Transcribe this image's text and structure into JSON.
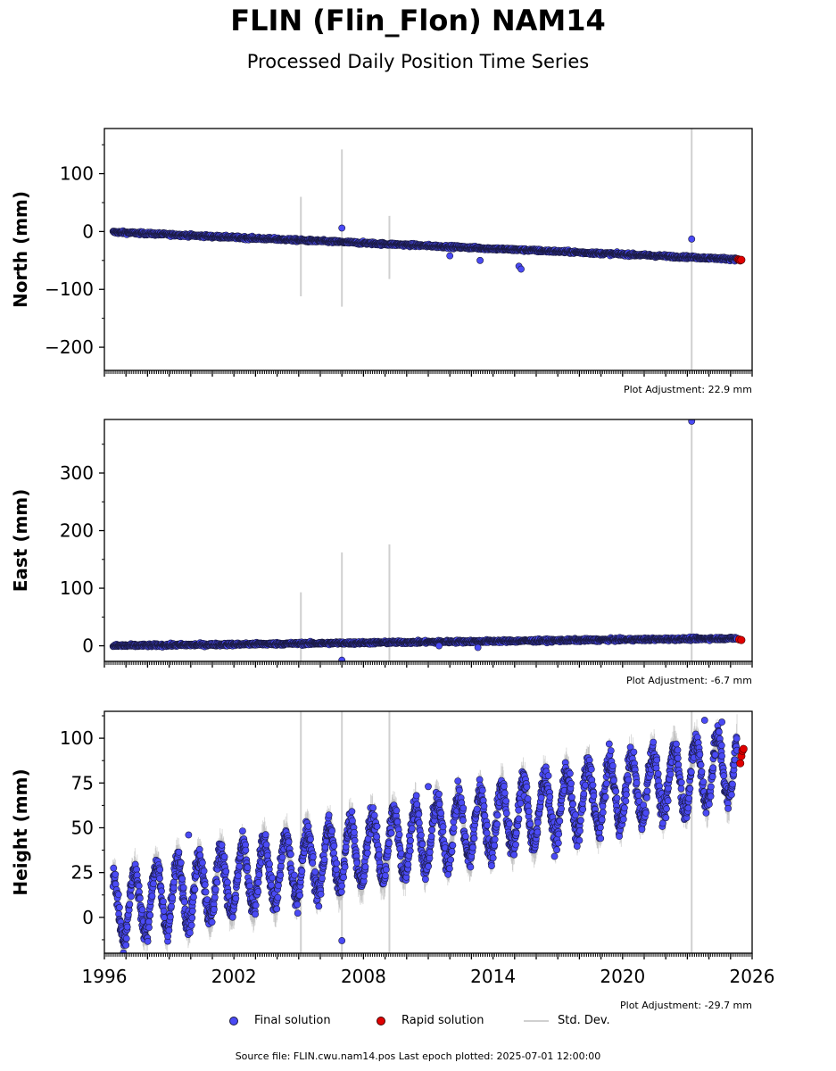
{
  "title": "FLIN (Flin_Flon) NAM14",
  "subtitle": "Processed Daily Position Time Series",
  "legend": {
    "final": "Final solution",
    "rapid": "Rapid solution",
    "std": "Std. Dev."
  },
  "footer": "Source file: FLIN.cwu.nam14.pos  Last epoch plotted: 2025-07-01 12:00:00",
  "colors": {
    "final": "#4a4af5",
    "rapid": "#e00000",
    "std": "#d0d0d0",
    "edge": "#1a1a40"
  },
  "chart_data": [
    {
      "type": "scatter",
      "ylabel": "North (mm)",
      "adjustment": "Plot Adjustment: 22.9 mm",
      "xlim": [
        1996,
        2026
      ],
      "ylim": [
        -240,
        178
      ],
      "yticks": [
        -200,
        -100,
        0,
        100
      ],
      "ytick_labels": [
        "−200",
        "−100",
        "0",
        "100"
      ],
      "final_trend": {
        "x": [
          1996.4,
          2025.3
        ],
        "y": [
          -1,
          -48
        ]
      },
      "rapid_points": [
        [
          2025.35,
          -48
        ],
        [
          2025.4,
          -49
        ],
        [
          2025.45,
          -50
        ],
        [
          2025.5,
          -49
        ]
      ],
      "outliers": [
        [
          2007.0,
          6
        ],
        [
          2023.2,
          -13
        ],
        [
          2015.2,
          -60
        ],
        [
          2015.3,
          -65
        ],
        [
          2012.0,
          -42
        ],
        [
          2013.4,
          -50
        ]
      ],
      "std_spikes": [
        [
          2005.1,
          -112,
          60
        ],
        [
          2007.0,
          -130,
          142
        ],
        [
          2009.2,
          -82,
          27
        ],
        [
          2023.2,
          -240,
          178
        ]
      ]
    },
    {
      "type": "scatter",
      "ylabel": "East (mm)",
      "adjustment": "Plot Adjustment: -6.7 mm",
      "xlim": [
        1996,
        2026
      ],
      "ylim": [
        -27,
        393
      ],
      "yticks": [
        0,
        100,
        200,
        300
      ],
      "ytick_labels": [
        "0",
        "100",
        "200",
        "300"
      ],
      "final_trend": {
        "x": [
          1996.4,
          2025.3
        ],
        "y": [
          0,
          13
        ]
      },
      "rapid_points": [
        [
          2025.4,
          11
        ],
        [
          2025.5,
          10
        ]
      ],
      "outliers": [
        [
          2023.2,
          390
        ],
        [
          2007.0,
          -25
        ],
        [
          2013.3,
          -3
        ],
        [
          2011.5,
          0
        ]
      ],
      "std_spikes": [
        [
          2005.1,
          -27,
          93
        ],
        [
          2007.0,
          -27,
          162
        ],
        [
          2009.2,
          -27,
          176
        ],
        [
          2023.2,
          -27,
          393
        ]
      ]
    },
    {
      "type": "scatter",
      "ylabel": "Height (mm)",
      "adjustment": "Plot Adjustment: -29.7 mm",
      "xlim": [
        1996,
        2026
      ],
      "ylim": [
        -20,
        115
      ],
      "yticks": [
        0,
        25,
        50,
        75,
        100
      ],
      "ytick_labels": [
        "0",
        "25",
        "50",
        "75",
        "100"
      ],
      "xticks": [
        1996,
        2002,
        2008,
        2014,
        2020,
        2026
      ],
      "xtick_labels": [
        "1996",
        "2002",
        "2008",
        "2014",
        "2020",
        "2026"
      ],
      "final_trend": {
        "x": [
          1996.4,
          2025.3
        ],
        "y": [
          5,
          85
        ]
      },
      "seasonal_amplitude": 18,
      "rapid_points": [
        [
          2025.45,
          86
        ],
        [
          2025.5,
          90
        ],
        [
          2025.55,
          93
        ],
        [
          2025.6,
          94
        ]
      ],
      "outliers": [
        [
          1999.9,
          46
        ],
        [
          2007.0,
          -13
        ],
        [
          2011.0,
          73
        ],
        [
          2023.8,
          110
        ],
        [
          2024.6,
          109
        ]
      ],
      "std_spikes": [
        [
          2005.1,
          -20,
          115
        ],
        [
          2007.0,
          -20,
          115
        ],
        [
          2009.2,
          -20,
          115
        ],
        [
          2023.2,
          -20,
          115
        ]
      ]
    }
  ]
}
